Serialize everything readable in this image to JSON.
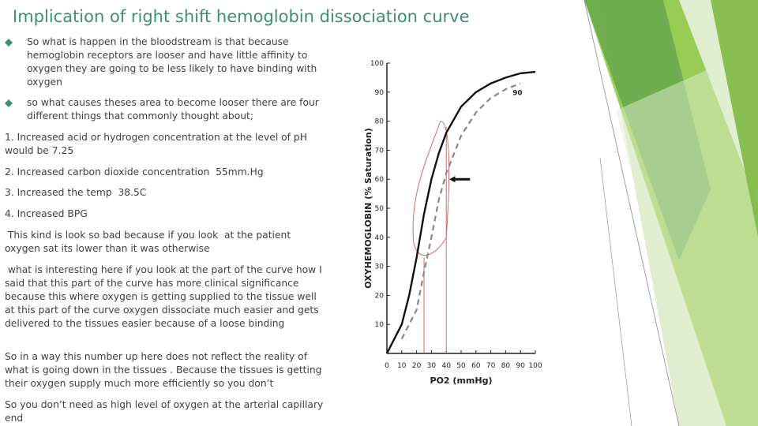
{
  "slide": {
    "title": "Implication of right shift hemoglobin dissociation curve",
    "bullets": [
      "So what is happen in the bloodstream is that because hemoglobin receptors are looser and have little affinity to oxygen they are going to be less likely to have binding with oxygen",
      " so what causes theses area to become looser there are four different things that commonly thought about;"
    ],
    "paragraphs": [
      "1. Increased acid or hydrogen concentration at the level of pH would be 7.25",
      "2. Increased carbon dioxide concentration  55mm.Hg",
      "3. Increased the temp  38.5C",
      "4. Increased BPG",
      " This kind is look so bad because if you look  at the patient oxygen sat its lower than it was otherwise",
      " what is interesting here if you look at the part of the curve how I said that this part of the curve has more clinical significance because this where oxygen is getting supplied to the tissue well at this part of the curve oxygen dissociate much easier and gets delivered to the tissues easier because of a loose binding",
      "So in a way this number up here does not reflect the reality of what is going down in the tissues . Because the tissues is getting their oxygen supply much more efficiently so you don’t",
      "So you don’t need as high level of oxygen at the arterial capillary end"
    ],
    "bullet_icon": "diamond-bullet-icon",
    "colors": {
      "title": "#3e8f6f",
      "green_dark": "#6aa84f",
      "green_mid": "#8dc63f",
      "green_light": "#c5e0a5"
    }
  },
  "chart_data": {
    "type": "line",
    "ylabel": "OXYHEMOGLOBIN (% Saturation)",
    "xlabel": "PO2 (mmHg)",
    "x_ticks": [
      "0",
      "10",
      "20",
      "30",
      "40",
      "50",
      "60",
      "70",
      "80",
      "90",
      "100"
    ],
    "y_ticks": [
      "10",
      "20",
      "30",
      "40",
      "50",
      "60",
      "70",
      "80",
      "90",
      "100"
    ],
    "xlim": [
      0,
      100
    ],
    "ylim": [
      0,
      100
    ],
    "curve_label": "90",
    "series": [
      {
        "style": "solid",
        "x": [
          0,
          10,
          15,
          20,
          25,
          30,
          35,
          40,
          50,
          60,
          70,
          80,
          90,
          100
        ],
        "y": [
          0,
          10,
          20,
          33,
          48,
          60,
          69,
          76,
          85,
          90,
          93,
          95,
          96.5,
          97
        ]
      },
      {
        "style": "dashed",
        "x": [
          10,
          20,
          25,
          30,
          35,
          40,
          50,
          60,
          70,
          80,
          90
        ],
        "y": [
          5,
          15,
          28,
          40,
          53,
          62,
          75,
          83,
          88,
          91,
          93
        ]
      }
    ]
  }
}
